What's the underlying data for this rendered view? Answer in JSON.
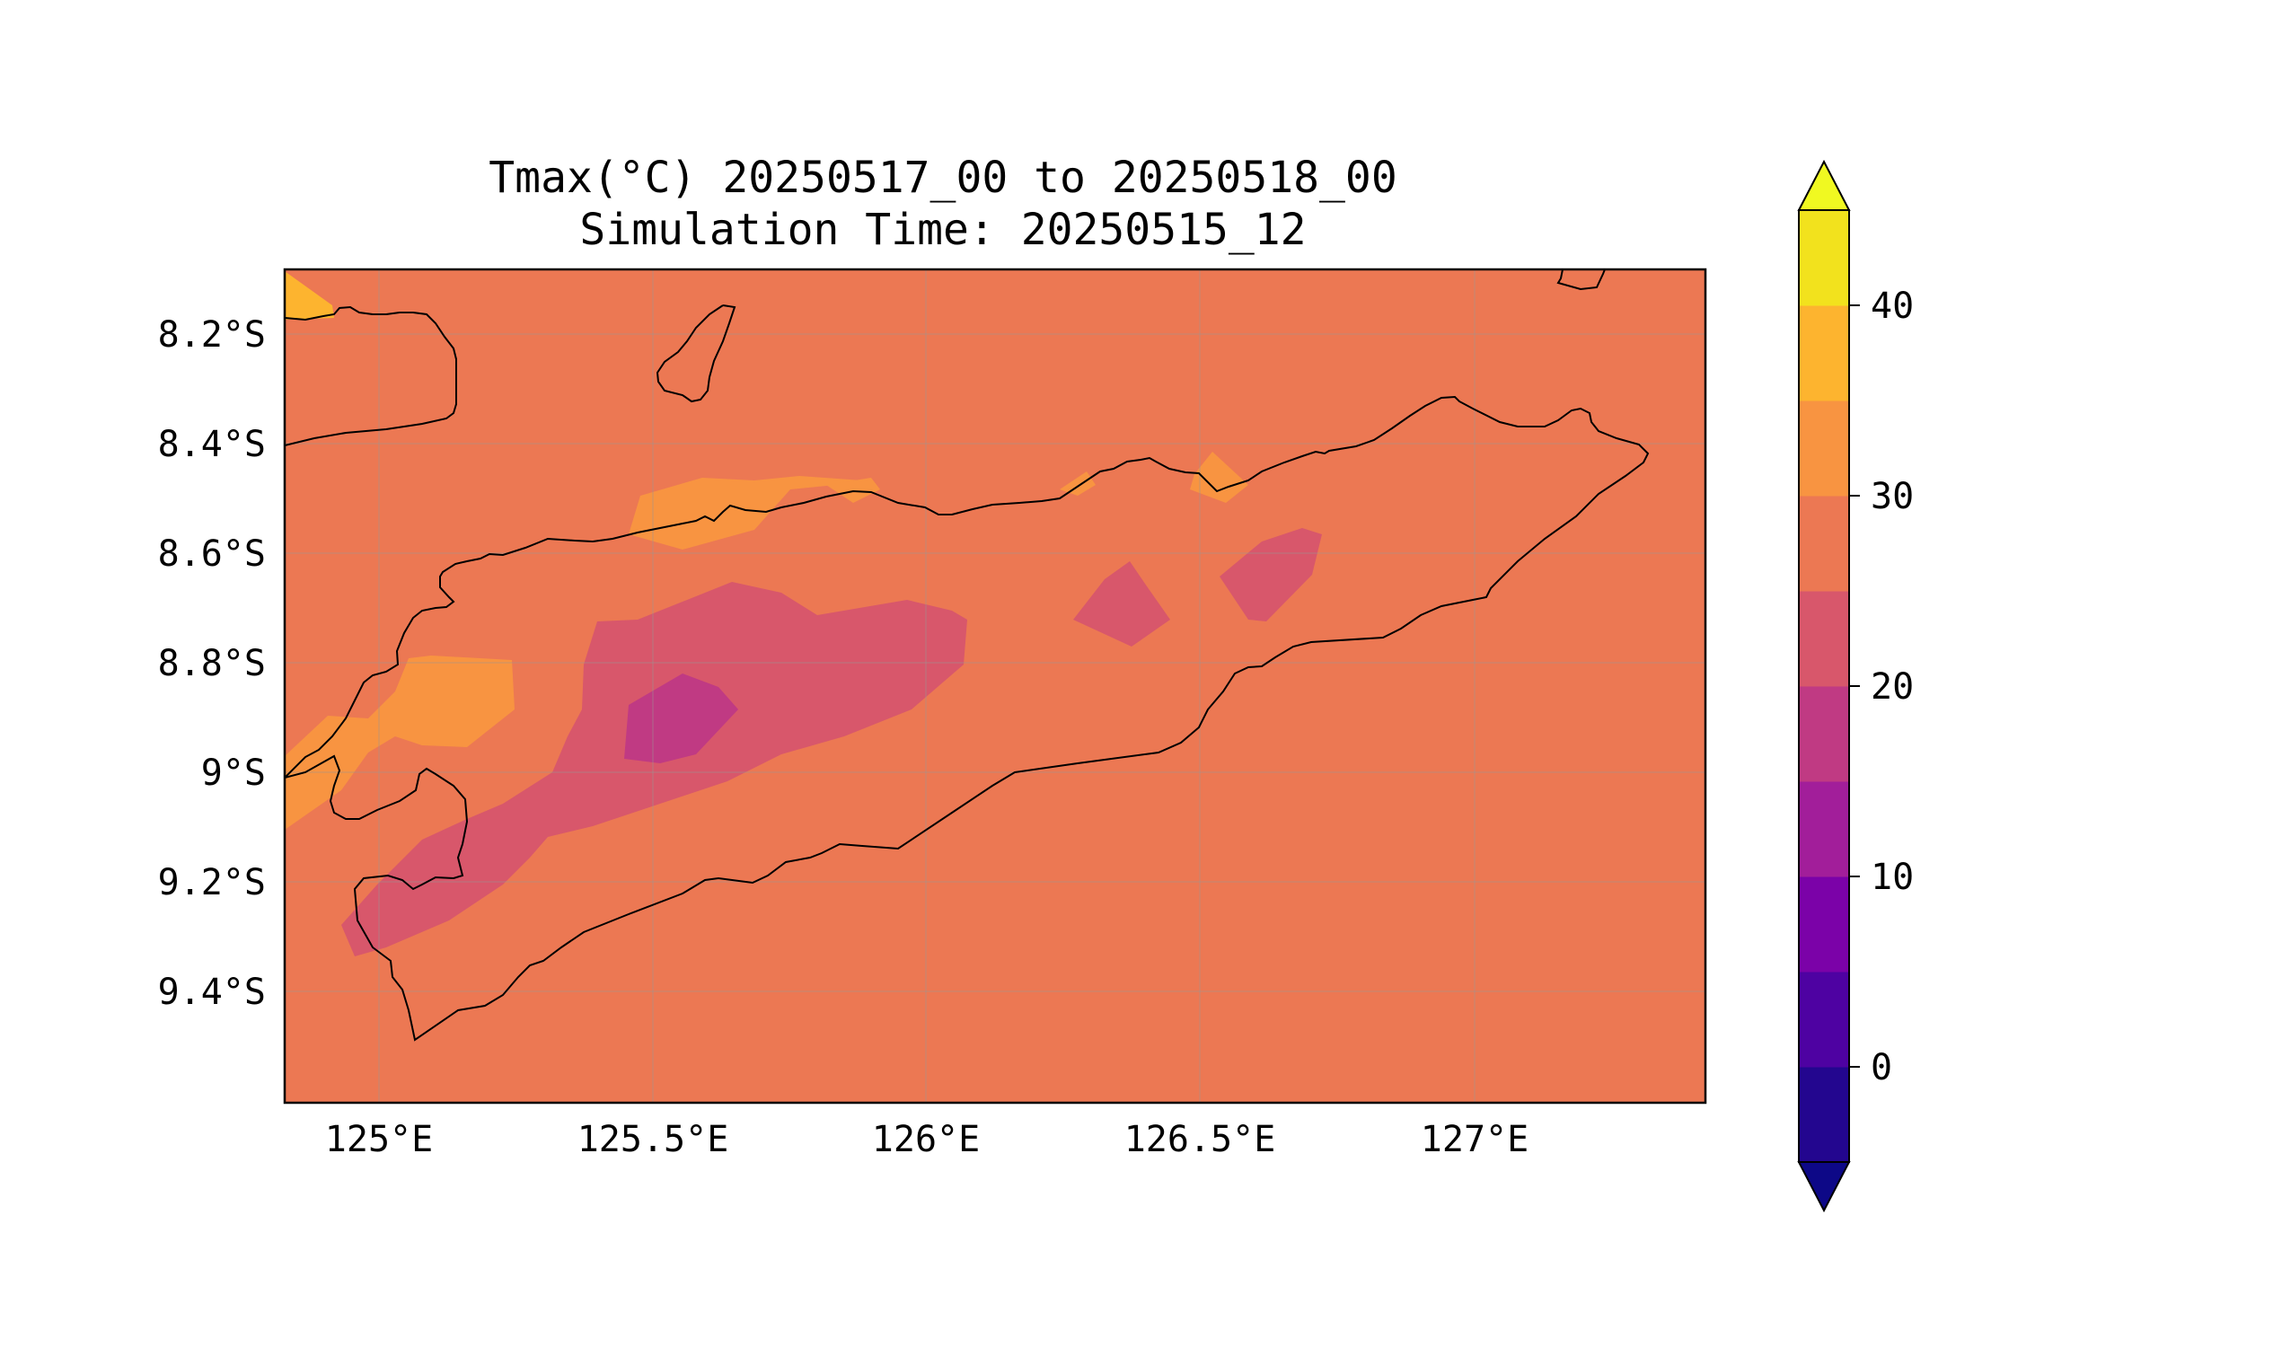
{
  "chart_data": {
    "type": "heatmap",
    "title_line1": "Tmax(°C) 20250517_00 to 20250518_00",
    "title_line2": "Simulation Time: 20250515_12",
    "xlabel": "",
    "ylabel": "",
    "x_ticks": [
      "125°E",
      "125.5°E",
      "126°E",
      "126.5°E",
      "127°E"
    ],
    "y_ticks": [
      "8.2°S",
      "8.4°S",
      "8.6°S",
      "8.8°S",
      "9°S",
      "9.2°S",
      "9.4°S"
    ],
    "lon_range": [
      124.82,
      127.42
    ],
    "lat_range": [
      -9.6,
      -8.08
    ],
    "grid": true,
    "background_level": "25-30",
    "regions": [
      {
        "level": "30-35",
        "area": "west coast near 125.1°E 8.9°S"
      },
      {
        "level": "30-35",
        "area": "north coast near 125.6°E 8.55°S"
      },
      {
        "level": "30-35",
        "area": "north coast near 126.55°E 8.45°S"
      },
      {
        "level": "35-40",
        "area": "northwest corner near 124.85°E 8.12°S"
      },
      {
        "level": "20-25",
        "area": "central band 125.0°E–126.1°E, 8.75°S–9.3°S"
      },
      {
        "level": "20-25",
        "area": "near 126.4°E 8.7°S"
      },
      {
        "level": "20-25",
        "area": "near 126.6°E 8.65°S"
      },
      {
        "level": "15-20",
        "area": "near 125.55°E 8.9°S"
      }
    ],
    "colorbar": {
      "levels": [
        -5,
        0,
        5,
        10,
        15,
        20,
        25,
        30,
        35,
        40,
        45
      ],
      "ticks": [
        "0",
        "10",
        "20",
        "30",
        "40"
      ],
      "colors": [
        "#23068f",
        "#4e02a2",
        "#7b02a8",
        "#a21e9a",
        "#c03a83",
        "#d8576b",
        "#ec7853",
        "#f89441",
        "#fdb42f",
        "#f2e21d"
      ],
      "under_color": "#0d0887",
      "over_color": "#f0f921",
      "extend": "both"
    }
  }
}
